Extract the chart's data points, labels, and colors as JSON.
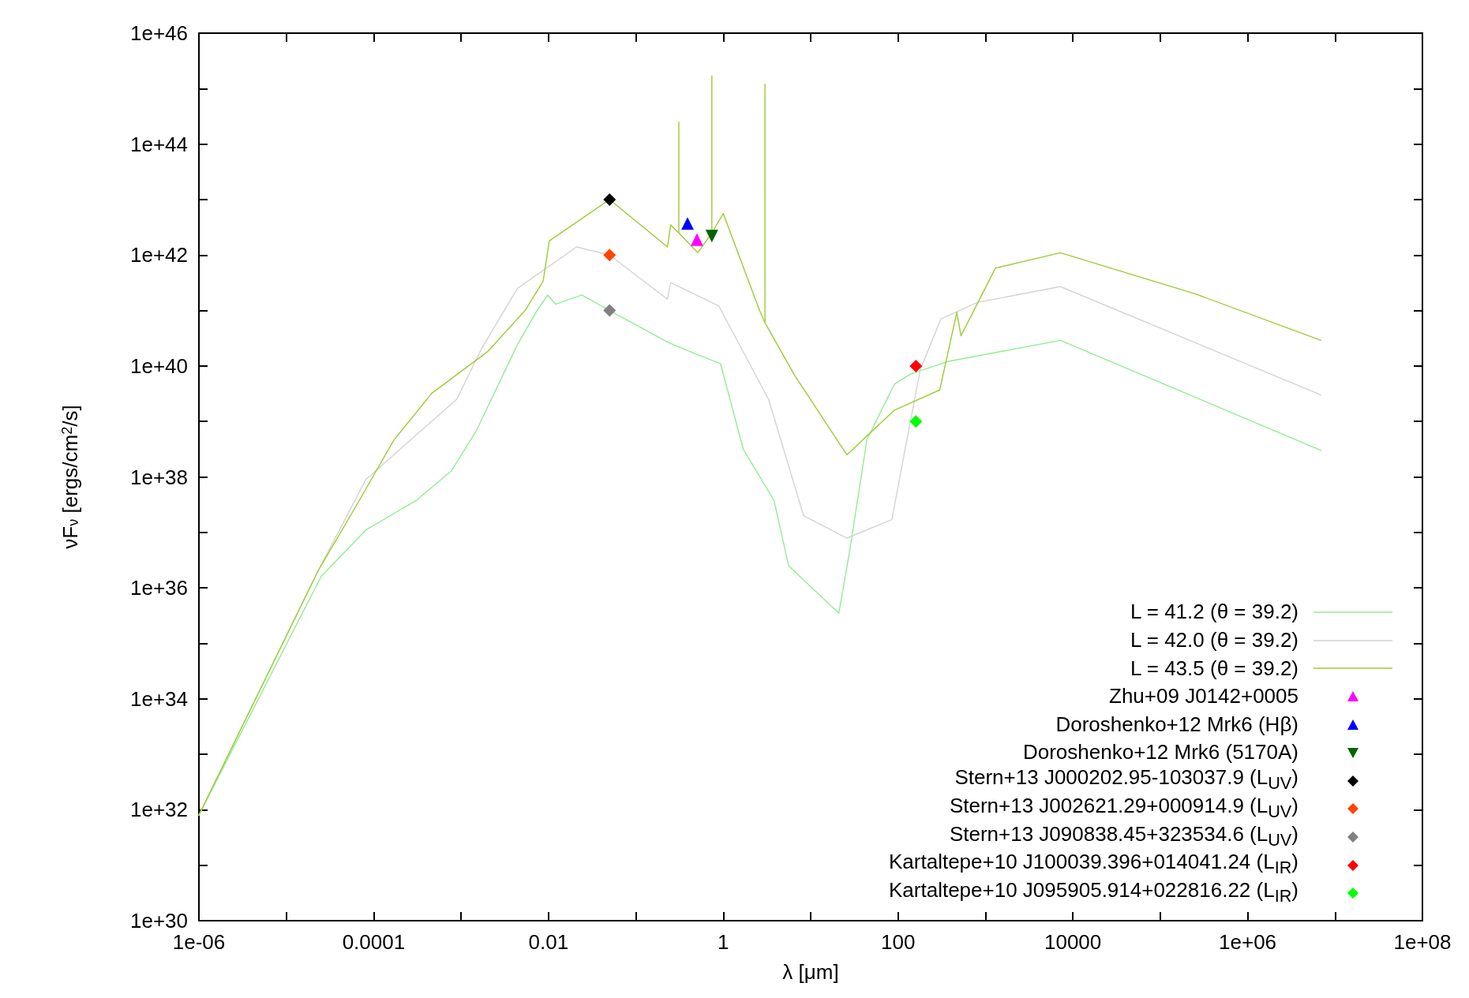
{
  "chart_data": {
    "type": "line",
    "xlabel": "λ [μm]",
    "ylabel": "νF$_{ν}$ [ergs/cm$^{2}$/s]",
    "log": "xy",
    "grid": false,
    "legend": "bottom right",
    "xlim": [
      1e-06,
      100000000.0
    ],
    "ylim": [
      1e+30,
      1e+46
    ],
    "xticks": [
      {
        "value": 1e-06,
        "label": "1e-06"
      },
      {
        "value": 1e-05,
        "label": null
      },
      0.0001,
      {
        "value": 0.001,
        "label": null
      },
      0.01,
      {
        "value": 0.1,
        "label": null
      },
      1,
      {
        "value": 10,
        "label": null
      },
      100,
      {
        "value": 1000,
        "label": null
      },
      10000,
      {
        "value": 100000.0,
        "label": null
      },
      {
        "value": 1000000.0,
        "label": "1e+06"
      },
      {
        "value": 10000000.0,
        "label": null
      },
      {
        "value": 100000000.0,
        "label": "1e+08"
      }
    ],
    "yticks": [
      {
        "value": 1e+30,
        "label": "1e+30"
      },
      {
        "value": 1e+31,
        "label": null
      },
      {
        "value": 1e+32,
        "label": "1e+32"
      },
      {
        "value": 1e+33,
        "label": null
      },
      {
        "value": 1e+34,
        "label": "1e+34"
      },
      {
        "value": 1e+35,
        "label": null
      },
      {
        "value": 1e+36,
        "label": "1e+36"
      },
      {
        "value": 1e+37,
        "label": null
      },
      {
        "value": 1e+38,
        "label": "1e+38"
      },
      {
        "value": 1e+39,
        "label": null
      },
      {
        "value": 1e+40,
        "label": "1e+40"
      },
      {
        "value": 1e+41,
        "label": null
      },
      {
        "value": 1e+42,
        "label": "1e+42"
      },
      {
        "value": 1e+43,
        "label": null
      },
      {
        "value": 1e+44,
        "label": "1e+44"
      },
      {
        "value": 1e+45,
        "label": null
      },
      {
        "value": 1e+46,
        "label": "1e+46"
      }
    ],
    "series": [
      {
        "name": "L = 41.2 (θ = 39.2)",
        "type": "line",
        "marker": "none",
        "color": "#90ee90",
        "x": [
          1e-06,
          2.5e-05,
          8.1e-05,
          0.00031,
          0.00078,
          0.0015,
          0.0044,
          0.0074,
          0.0098,
          0.012,
          0.024,
          0.05,
          0.23,
          0.46,
          0.93,
          1.7,
          3.8,
          5.6,
          21,
          28,
          44,
          91,
          140,
          370,
          7200,
          6900000.0
        ],
        "values": [
          8e+31,
          1.6e+36,
          1.1e+37,
          3.8e+37,
          1.3e+38,
          6.9e+38,
          2.4e+40,
          1e+41,
          1.9e+41,
          1.3e+41,
          1.9e+41,
          1e+41,
          2.7e+40,
          1.7e+40,
          1.1e+40,
          3.1e+38,
          3.8e+37,
          2.5e+36,
          3.5e+35,
          4.7e+36,
          4.7e+38,
          4.7e+39,
          7.2e+39,
          1.2e+40,
          2.9e+40,
          3e+38
        ]
      },
      {
        "name": "L = 42.0 (θ = 39.2)",
        "type": "line",
        "marker": "none",
        "color": "#d3d3d3",
        "x": [
          1e-06,
          2.3e-05,
          8.1e-05,
          0.00031,
          0.00089,
          0.0017,
          0.0044,
          0.021,
          0.05,
          0.23,
          0.25,
          0.89,
          3.3,
          8.3,
          26,
          85,
          120,
          180,
          310,
          810,
          7200,
          6900000.0
        ],
        "values": [
          8e+31,
          2e+36,
          8.9e+37,
          5.8e+38,
          2.5e+39,
          2e+40,
          2.5e+41,
          1.4e+42,
          1e+42,
          1.6e+41,
          3.2e+41,
          1.2e+41,
          2.5e+39,
          2e+37,
          7.9e+36,
          1.7e+37,
          3.1e+38,
          8.7e+39,
          7.1e+40,
          1.4e+41,
          2.7e+41,
          3e+39
        ]
      },
      {
        "name": "L = 43.5 (θ = 39.2)",
        "type": "line",
        "marker": "none",
        "color": "#9acd32",
        "x": [
          1e-06,
          2.3e-05,
          6.3e-05,
          0.00017,
          0.00046,
          0.002,
          0.0054,
          0.0087,
          0.0102,
          0.05,
          0.23,
          0.25,
          0.31,
          0.31,
          0.31,
          0.51,
          0.74,
          0.74,
          0.74,
          1,
          2.6,
          3,
          3,
          3,
          6.5,
          26,
          91,
          300,
          470,
          525,
          1300,
          7200,
          250000.0,
          6900000.0
        ],
        "values": [
          8e+31,
          2e+36,
          3e+37,
          4.6e+38,
          3.2e+39,
          1.8e+40,
          1e+41,
          3.4e+41,
          1.8e+42,
          1e+43,
          1.4e+42,
          3.5e+42,
          2.5e+42,
          2.5e+44,
          2.5e+42,
          1.1e+42,
          2.5e+42,
          1.7e+45,
          2.5e+42,
          5.6e+42,
          1e+41,
          6e+40,
          1.2e+45,
          6e+40,
          6.9e+39,
          2.5e+38,
          1.6e+39,
          3.7e+39,
          9.3e+40,
          3.5e+40,
          5.8e+41,
          1.1e+42,
          2e+41,
          2.9e+40
        ]
      },
      {
        "name": "Zhu+09 J0142+0005",
        "type": "scatter",
        "marker": "triangle",
        "color": "#ff00ff",
        "x": [
          0.5
        ],
        "values": [
          1.9e+42
        ]
      },
      {
        "name": "Doroshenko+12 Mrk6 (Hβ)",
        "type": "scatter",
        "marker": "triangle",
        "color": "#0000ff",
        "x": [
          0.39
        ],
        "values": [
          3.7e+42
        ]
      },
      {
        "name": "Doroshenko+12 Mrk6 (5170A)",
        "type": "scatter",
        "marker": "triangle-down",
        "color": "#006400",
        "x": [
          0.74
        ],
        "values": [
          2.2e+42
        ]
      },
      {
        "name": "Stern+13 J000202.95-103037.9 (L$_{UV}$)",
        "type": "scatter",
        "marker": "diamond",
        "color": "#000000",
        "x": [
          0.05
        ],
        "values": [
          1e+43
        ]
      },
      {
        "name": "Stern+13 J002621.29+000914.9 (L$_{UV}$)",
        "type": "scatter",
        "marker": "diamond",
        "color": "#ff4500",
        "x": [
          0.05
        ],
        "values": [
          1e+42
        ]
      },
      {
        "name": "Stern+13 J090838.45+323534.6 (L$_{UV}$)",
        "type": "scatter",
        "marker": "diamond",
        "color": "#808080",
        "x": [
          0.05
        ],
        "values": [
          1e+41
        ]
      },
      {
        "name": "Kartaltepe+10 J100039.396+014041.24 (L$_{IR}$)",
        "type": "scatter",
        "marker": "diamond",
        "color": "#ff0000",
        "x": [
          160
        ],
        "values": [
          1e+40
        ]
      },
      {
        "name": "Kartaltepe+10 J095905.914+022816.22 (L$_{IR}$)",
        "type": "scatter",
        "marker": "diamond",
        "color": "#00ff00",
        "x": [
          160
        ],
        "values": [
          1e+39
        ]
      }
    ]
  }
}
